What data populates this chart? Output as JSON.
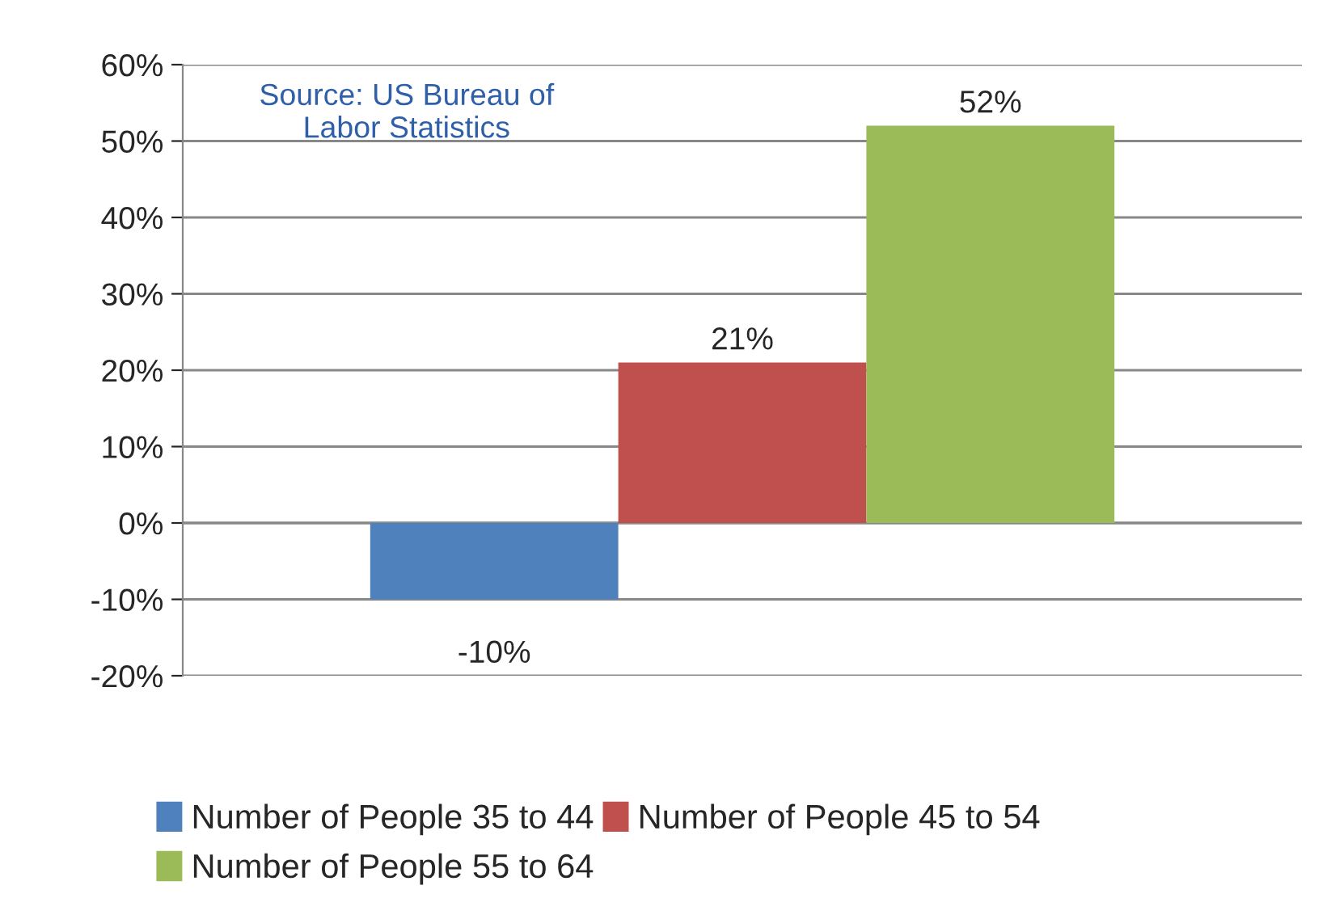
{
  "chart_data": {
    "type": "bar",
    "categories": [
      null
    ],
    "series": [
      {
        "name": "Number of People 35 to 44",
        "color": "#4f81bd",
        "values": [
          -10
        ],
        "value_labels": [
          "-10%"
        ]
      },
      {
        "name": "Number of People 45 to 54",
        "color": "#c0504d",
        "values": [
          21
        ],
        "value_labels": [
          "21%"
        ]
      },
      {
        "name": "Number of People 55 to 64",
        "color": "#9bbb59",
        "values": [
          52
        ],
        "value_labels": [
          "52%"
        ]
      }
    ],
    "ylim": [
      -20,
      60
    ],
    "yticks": [
      {
        "value": -20,
        "label": "-20%"
      },
      {
        "value": -10,
        "label": "-10%"
      },
      {
        "value": 0,
        "label": "0%"
      },
      {
        "value": 10,
        "label": "10%"
      },
      {
        "value": 20,
        "label": "20%"
      },
      {
        "value": 30,
        "label": "30%"
      },
      {
        "value": 40,
        "label": "40%"
      },
      {
        "value": 50,
        "label": "50%"
      },
      {
        "value": 60,
        "label": "60%"
      }
    ],
    "grid": "y",
    "legend": "bottom",
    "annotations": [
      "Source: US Bureau of\nLabor Statistics"
    ]
  }
}
